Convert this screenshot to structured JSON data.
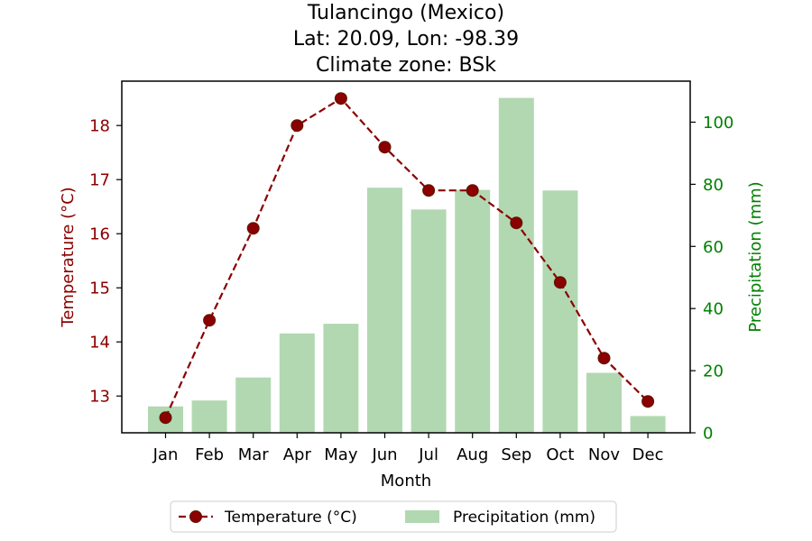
{
  "chart_data": {
    "type": "bar+line",
    "title": [
      "Tulancingo (Mexico)",
      "Lat: 20.09, Lon: -98.39",
      "Climate zone: BSk"
    ],
    "xlabel": "Month",
    "categories": [
      "Jan",
      "Feb",
      "Mar",
      "Apr",
      "May",
      "Jun",
      "Jul",
      "Aug",
      "Sep",
      "Oct",
      "Nov",
      "Dec"
    ],
    "temperature": {
      "name": "Temperature (°C)",
      "axis_label": "Temperature (°C)",
      "values": [
        12.6,
        14.4,
        16.1,
        18.0,
        18.5,
        17.6,
        16.8,
        16.8,
        16.2,
        15.1,
        13.7,
        12.9
      ],
      "ylim": [
        12.32,
        18.82
      ],
      "ticks": [
        13,
        14,
        15,
        16,
        17,
        18
      ],
      "color": "#8b0000"
    },
    "precipitation": {
      "name": "Precipitation (mm)",
      "axis_label": "Precipitation (mm)",
      "values": [
        8.5,
        10.4,
        17.8,
        32.0,
        35.1,
        78.9,
        71.9,
        78.2,
        107.8,
        78.0,
        19.3,
        5.4
      ],
      "ylim": [
        0,
        113.2
      ],
      "ticks": [
        0,
        20,
        40,
        60,
        80,
        100
      ],
      "color": "#b2d8b2",
      "axis_color": "#008000"
    },
    "legend_position": "bottom-center"
  }
}
